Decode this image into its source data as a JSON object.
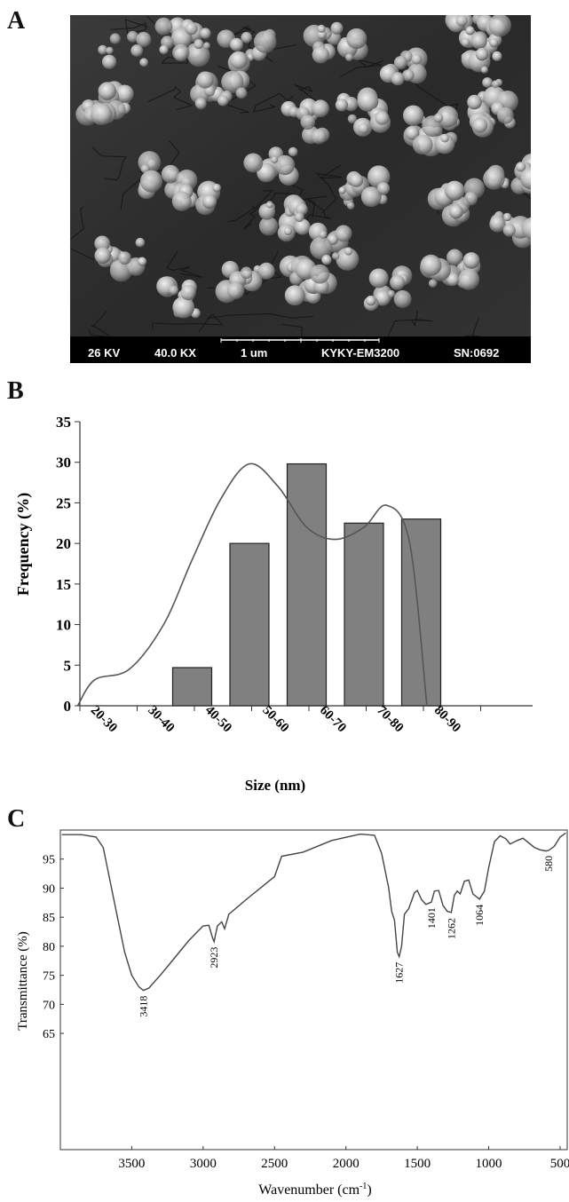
{
  "panels": {
    "a_label": "A",
    "b_label": "B",
    "c_label": "C"
  },
  "sem": {
    "kv": "26 KV",
    "mag": "40.0 KX",
    "scale": "1 um",
    "instrument": "KYKY-EM3200",
    "serial": "SN:0692"
  },
  "chart_data": [
    {
      "type": "bar",
      "xlabel": "Size (nm)",
      "ylabel": "Frequency (%)",
      "categories": [
        "20-30",
        "30-40",
        "40-50",
        "50-60",
        "60-70",
        "70-80",
        "80-90"
      ],
      "values": [
        0,
        4.7,
        20,
        29.8,
        22.5,
        23,
        0
      ],
      "ylim": [
        0,
        35
      ],
      "yticks": [
        0,
        5,
        10,
        15,
        20,
        25,
        30,
        35
      ],
      "fit_curve": [
        [
          -1,
          0
        ],
        [
          -0.7,
          3.2
        ],
        [
          -0.1,
          4.5
        ],
        [
          0.5,
          10
        ],
        [
          1,
          18
        ],
        [
          1.5,
          25.5
        ],
        [
          2,
          29.8
        ],
        [
          2.5,
          27
        ],
        [
          3,
          22
        ],
        [
          3.5,
          20.5
        ],
        [
          4,
          22
        ],
        [
          4.4,
          24.7
        ],
        [
          4.8,
          20
        ],
        [
          5.1,
          0
        ]
      ],
      "bar_color": "#808080",
      "grid": false
    },
    {
      "type": "line",
      "xlabel": "Wavenumber (cm-1)",
      "xlabel_main": "Wavenumber (cm",
      "xlabel_sup": "-1",
      "xlabel_end": ")",
      "ylabel": "Transmittance (%)",
      "xlim": [
        4000,
        450
      ],
      "xticks": [
        3500,
        3000,
        2500,
        2000,
        1500,
        1000,
        500
      ],
      "ylim": [
        45,
        100
      ],
      "yticks": [
        65,
        70,
        75,
        80,
        85,
        90,
        95
      ],
      "peak_labels": [
        "3418",
        "2923",
        "1627",
        "1401",
        "1262",
        "1064",
        "580"
      ],
      "peaks": [
        3418,
        2923,
        1627,
        1401,
        1262,
        1064,
        580
      ],
      "spectrum": [
        [
          3990,
          99.2
        ],
        [
          3850,
          99.2
        ],
        [
          3750,
          98.8
        ],
        [
          3700,
          97
        ],
        [
          3650,
          91
        ],
        [
          3600,
          85
        ],
        [
          3550,
          79
        ],
        [
          3500,
          75
        ],
        [
          3450,
          73
        ],
        [
          3418,
          72.4
        ],
        [
          3380,
          72.8
        ],
        [
          3300,
          75
        ],
        [
          3200,
          78
        ],
        [
          3100,
          81
        ],
        [
          3000,
          83.5
        ],
        [
          2960,
          83.6
        ],
        [
          2935,
          81.5
        ],
        [
          2923,
          80.8
        ],
        [
          2900,
          83.5
        ],
        [
          2870,
          84.2
        ],
        [
          2850,
          83
        ],
        [
          2820,
          85.5
        ],
        [
          2700,
          88
        ],
        [
          2500,
          92
        ],
        [
          2450,
          95.5
        ],
        [
          2300,
          96.2
        ],
        [
          2100,
          98.2
        ],
        [
          1900,
          99.3
        ],
        [
          1800,
          99.1
        ],
        [
          1750,
          96
        ],
        [
          1700,
          90
        ],
        [
          1680,
          86
        ],
        [
          1660,
          84.5
        ],
        [
          1640,
          79
        ],
        [
          1627,
          78.2
        ],
        [
          1610,
          80
        ],
        [
          1590,
          85.5
        ],
        [
          1560,
          86.5
        ],
        [
          1520,
          89.2
        ],
        [
          1500,
          89.6
        ],
        [
          1470,
          88
        ],
        [
          1440,
          87.2
        ],
        [
          1401,
          87.6
        ],
        [
          1380,
          89.5
        ],
        [
          1350,
          89.6
        ],
        [
          1320,
          87
        ],
        [
          1290,
          86
        ],
        [
          1262,
          85.8
        ],
        [
          1240,
          88.8
        ],
        [
          1220,
          89.5
        ],
        [
          1200,
          89
        ],
        [
          1170,
          91.2
        ],
        [
          1140,
          91.4
        ],
        [
          1110,
          89
        ],
        [
          1064,
          88.1
        ],
        [
          1030,
          89.5
        ],
        [
          1000,
          93.5
        ],
        [
          960,
          98
        ],
        [
          920,
          99
        ],
        [
          880,
          98.5
        ],
        [
          850,
          97.6
        ],
        [
          800,
          98.2
        ],
        [
          760,
          98.6
        ],
        [
          720,
          97.8
        ],
        [
          680,
          97
        ],
        [
          640,
          96.6
        ],
        [
          600,
          96.4
        ],
        [
          580,
          96.5
        ],
        [
          540,
          97.2
        ],
        [
          500,
          98.8
        ],
        [
          460,
          99.5
        ]
      ],
      "grid": false
    }
  ]
}
